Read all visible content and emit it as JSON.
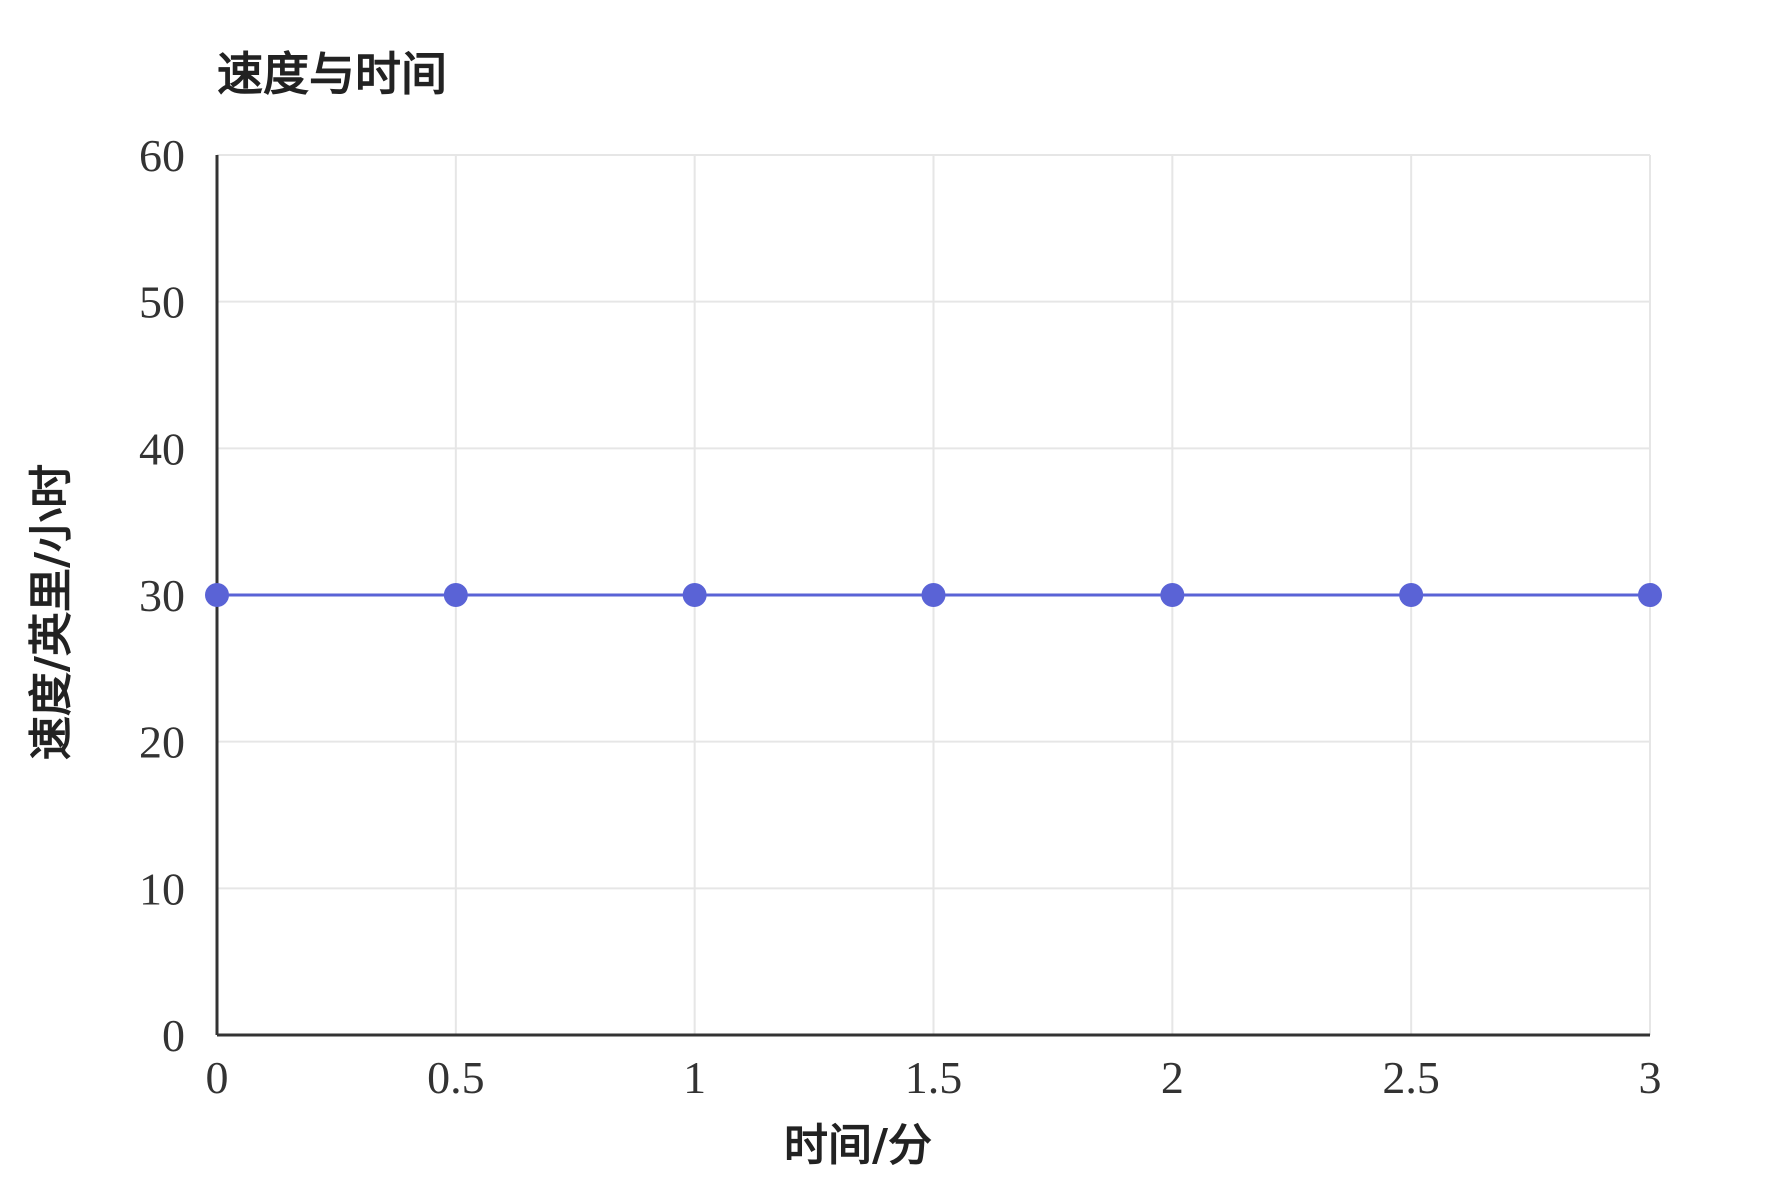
{
  "chart_data": {
    "type": "line",
    "title": "速度与时间",
    "xlabel": "时间/分",
    "ylabel": "速度/英里/小时",
    "x": [
      0,
      0.5,
      1,
      1.5,
      2,
      2.5,
      3
    ],
    "x_tick_labels": [
      "0",
      "0.5",
      "1",
      "1.5",
      "2",
      "2.5",
      "3"
    ],
    "y_tick_labels": [
      "0",
      "10",
      "20",
      "30",
      "40",
      "50",
      "60"
    ],
    "y_ticks": [
      0,
      10,
      20,
      30,
      40,
      50,
      60
    ],
    "series": [
      {
        "values": [
          30,
          30,
          30,
          30,
          30,
          30,
          30
        ],
        "color": "#5a63d6"
      }
    ],
    "xlim": [
      0,
      3
    ],
    "ylim": [
      0,
      60
    ],
    "grid": true,
    "markers": true
  }
}
